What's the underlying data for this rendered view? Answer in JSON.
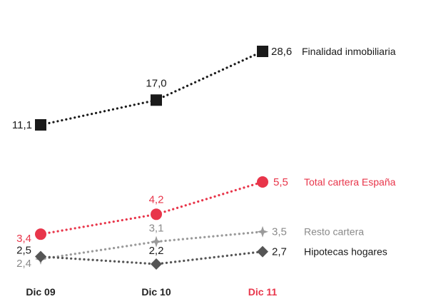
{
  "chart_data": {
    "type": "line",
    "categories": [
      "Dic 09",
      "Dic 10",
      "Dic 11"
    ],
    "highlight_category": "Dic 11",
    "series": [
      {
        "name": "Finalidad inmobiliaria",
        "values": [
          11.1,
          17.0,
          28.6
        ],
        "value_labels": [
          "11,1",
          "17,0",
          "28,6"
        ],
        "color": "#1a1a1a",
        "label_color": "#1a1a1a",
        "marker": "square"
      },
      {
        "name": "Total cartera España",
        "values": [
          3.4,
          4.2,
          5.5
        ],
        "value_labels": [
          "3,4",
          "4,2",
          "5,5"
        ],
        "color": "#e8354a",
        "label_color": "#e8354a",
        "marker": "circle"
      },
      {
        "name": "Resto cartera",
        "values": [
          2.4,
          3.1,
          3.5
        ],
        "value_labels": [
          "2,4",
          "3,1",
          "3,5"
        ],
        "color": "#9a9a9a",
        "label_color": "#8a8a8a",
        "marker": "star"
      },
      {
        "name": "Hipotecas hogares",
        "values": [
          2.5,
          2.2,
          2.7
        ],
        "value_labels": [
          "2,5",
          "2,2",
          "2,7"
        ],
        "color": "#555555",
        "label_color": "#1a1a1a",
        "marker": "diamond"
      }
    ],
    "xlabel": "",
    "ylabel": "",
    "grid": false,
    "legend": "end-of-line labels",
    "colors": {
      "axis_text": "#222222",
      "highlight": "#e8354a"
    }
  }
}
